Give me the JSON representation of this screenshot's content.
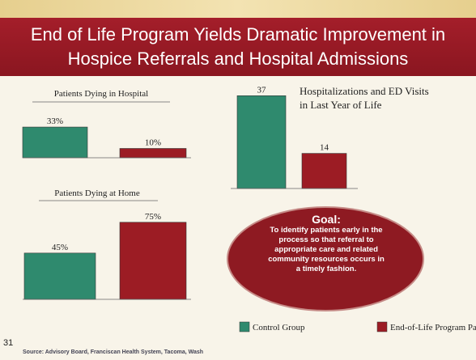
{
  "title": "End of Life Program Yields Dramatic Improvement in Hospice Referrals and Hospital Admissions",
  "chart_data": [
    {
      "type": "bar",
      "title": "Patients Dying in Hospital",
      "series": [
        {
          "name": "Control Group",
          "color": "#2f8a6e",
          "values": [
            33
          ],
          "value_labels": [
            "33%"
          ]
        },
        {
          "name": "End-of-Life Program Participants",
          "color": "#9c1c24",
          "values": [
            10
          ],
          "value_labels": [
            "10%"
          ]
        }
      ]
    },
    {
      "type": "bar",
      "title": "Patients Dying at Home",
      "series": [
        {
          "name": "Control Group",
          "color": "#2f8a6e",
          "values": [
            45
          ],
          "value_labels": [
            "45%"
          ]
        },
        {
          "name": "End-of-Life Program Participants",
          "color": "#9c1c24",
          "values": [
            75
          ],
          "value_labels": [
            "75%"
          ]
        }
      ]
    },
    {
      "type": "bar",
      "title": "Hospitalizations and ED Visits in Last Year of Life",
      "series": [
        {
          "name": "Control Group",
          "color": "#2f8a6e",
          "values": [
            37
          ]
        },
        {
          "name": "End-of-Life Program Participants",
          "color": "#9c1c24",
          "values": [
            14
          ]
        }
      ]
    }
  ],
  "goal": {
    "heading": "Goal:",
    "text": "To identify patients early in the process so that referral to appropriate care and related community resources occurs in a timely fashion."
  },
  "slide_number": "31",
  "source": "Source: Advisory Board, Franciscan Health System, Tacoma, Wash"
}
